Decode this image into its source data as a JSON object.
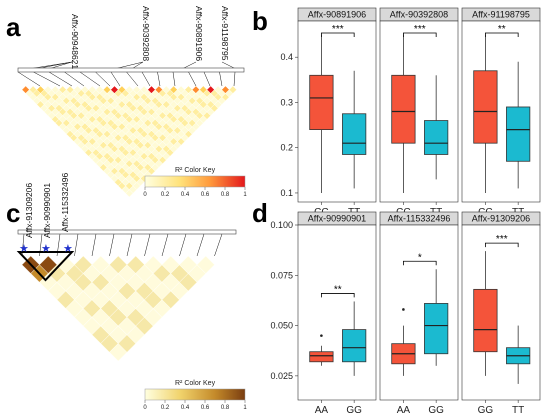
{
  "panel_letters": [
    "a",
    "b",
    "c",
    "d"
  ],
  "color_key": {
    "title": "R² Color Key",
    "ticks": [
      "0",
      "0.2",
      "0.4",
      "0.6",
      "0.8",
      "1"
    ]
  },
  "ld_a": {
    "snps": [
      "Affx-90948621",
      "Affx-90392808",
      "Affx-90891906",
      "Affx-91198795"
    ]
  },
  "ld_c": {
    "snps": [
      "Affx-91309206",
      "Affx-90990901",
      "Affx-115332496"
    ]
  },
  "chart_data": [
    {
      "type": "boxplot",
      "panel": "b",
      "ylim": [
        0.08,
        0.48
      ],
      "yticks": [
        0.1,
        0.2,
        0.3,
        0.4
      ],
      "ytick_labels": [
        "0.1",
        "0.2",
        "0.3",
        "0.4"
      ],
      "facets": [
        {
          "title": "Affx-90891906",
          "sig": "***",
          "groups": [
            {
              "label": "CC",
              "color": "#F4543A",
              "min": 0.1,
              "q1": 0.24,
              "median": 0.31,
              "q3": 0.36,
              "max": 0.45,
              "outliers": []
            },
            {
              "label": "TT",
              "color": "#1BBAD0",
              "min": 0.11,
              "q1": 0.185,
              "median": 0.21,
              "q3": 0.275,
              "max": 0.37,
              "outliers": []
            }
          ]
        },
        {
          "title": "Affx-90392808",
          "sig": "***",
          "groups": [
            {
              "label": "CC",
              "color": "#F4543A",
              "min": 0.1,
              "q1": 0.21,
              "median": 0.28,
              "q3": 0.36,
              "max": 0.45,
              "outliers": []
            },
            {
              "label": "TT",
              "color": "#1BBAD0",
              "min": 0.13,
              "q1": 0.185,
              "median": 0.21,
              "q3": 0.26,
              "max": 0.36,
              "outliers": []
            }
          ]
        },
        {
          "title": "Affx-91198795",
          "sig": "**",
          "groups": [
            {
              "label": "CC",
              "color": "#F4543A",
              "min": 0.1,
              "q1": 0.21,
              "median": 0.28,
              "q3": 0.37,
              "max": 0.45,
              "outliers": []
            },
            {
              "label": "TT",
              "color": "#1BBAD0",
              "min": 0.11,
              "q1": 0.17,
              "median": 0.24,
              "q3": 0.29,
              "max": 0.39,
              "outliers": []
            }
          ]
        }
      ]
    },
    {
      "type": "boxplot",
      "panel": "d",
      "ylim": [
        0.013,
        0.1
      ],
      "yticks": [
        0.025,
        0.05,
        0.075,
        0.1
      ],
      "ytick_labels": [
        "0.025",
        "0.050",
        "0.075",
        "0.100"
      ],
      "facets": [
        {
          "title": "Affx-90990901",
          "sig": "**",
          "groups": [
            {
              "label": "AA",
              "color": "#F4543A",
              "min": 0.03,
              "q1": 0.032,
              "median": 0.035,
              "q3": 0.037,
              "max": 0.04,
              "outliers": [
                0.045
              ]
            },
            {
              "label": "GG",
              "color": "#1BBAD0",
              "min": 0.025,
              "q1": 0.032,
              "median": 0.039,
              "q3": 0.048,
              "max": 0.062,
              "outliers": []
            }
          ]
        },
        {
          "title": "Affx-115332496",
          "sig": "*",
          "groups": [
            {
              "label": "AA",
              "color": "#F4543A",
              "min": 0.025,
              "q1": 0.031,
              "median": 0.036,
              "q3": 0.041,
              "max": 0.05,
              "outliers": [
                0.058
              ]
            },
            {
              "label": "GG",
              "color": "#1BBAD0",
              "min": 0.03,
              "q1": 0.036,
              "median": 0.05,
              "q3": 0.061,
              "max": 0.078,
              "outliers": []
            }
          ]
        },
        {
          "title": "Affx-91309206",
          "sig": "***",
          "groups": [
            {
              "label": "GG",
              "color": "#F4543A",
              "min": 0.025,
              "q1": 0.037,
              "median": 0.048,
              "q3": 0.068,
              "max": 0.087,
              "outliers": []
            },
            {
              "label": "TT",
              "color": "#1BBAD0",
              "min": 0.021,
              "q1": 0.031,
              "median": 0.035,
              "q3": 0.039,
              "max": 0.05,
              "outliers": []
            }
          ]
        }
      ]
    }
  ]
}
